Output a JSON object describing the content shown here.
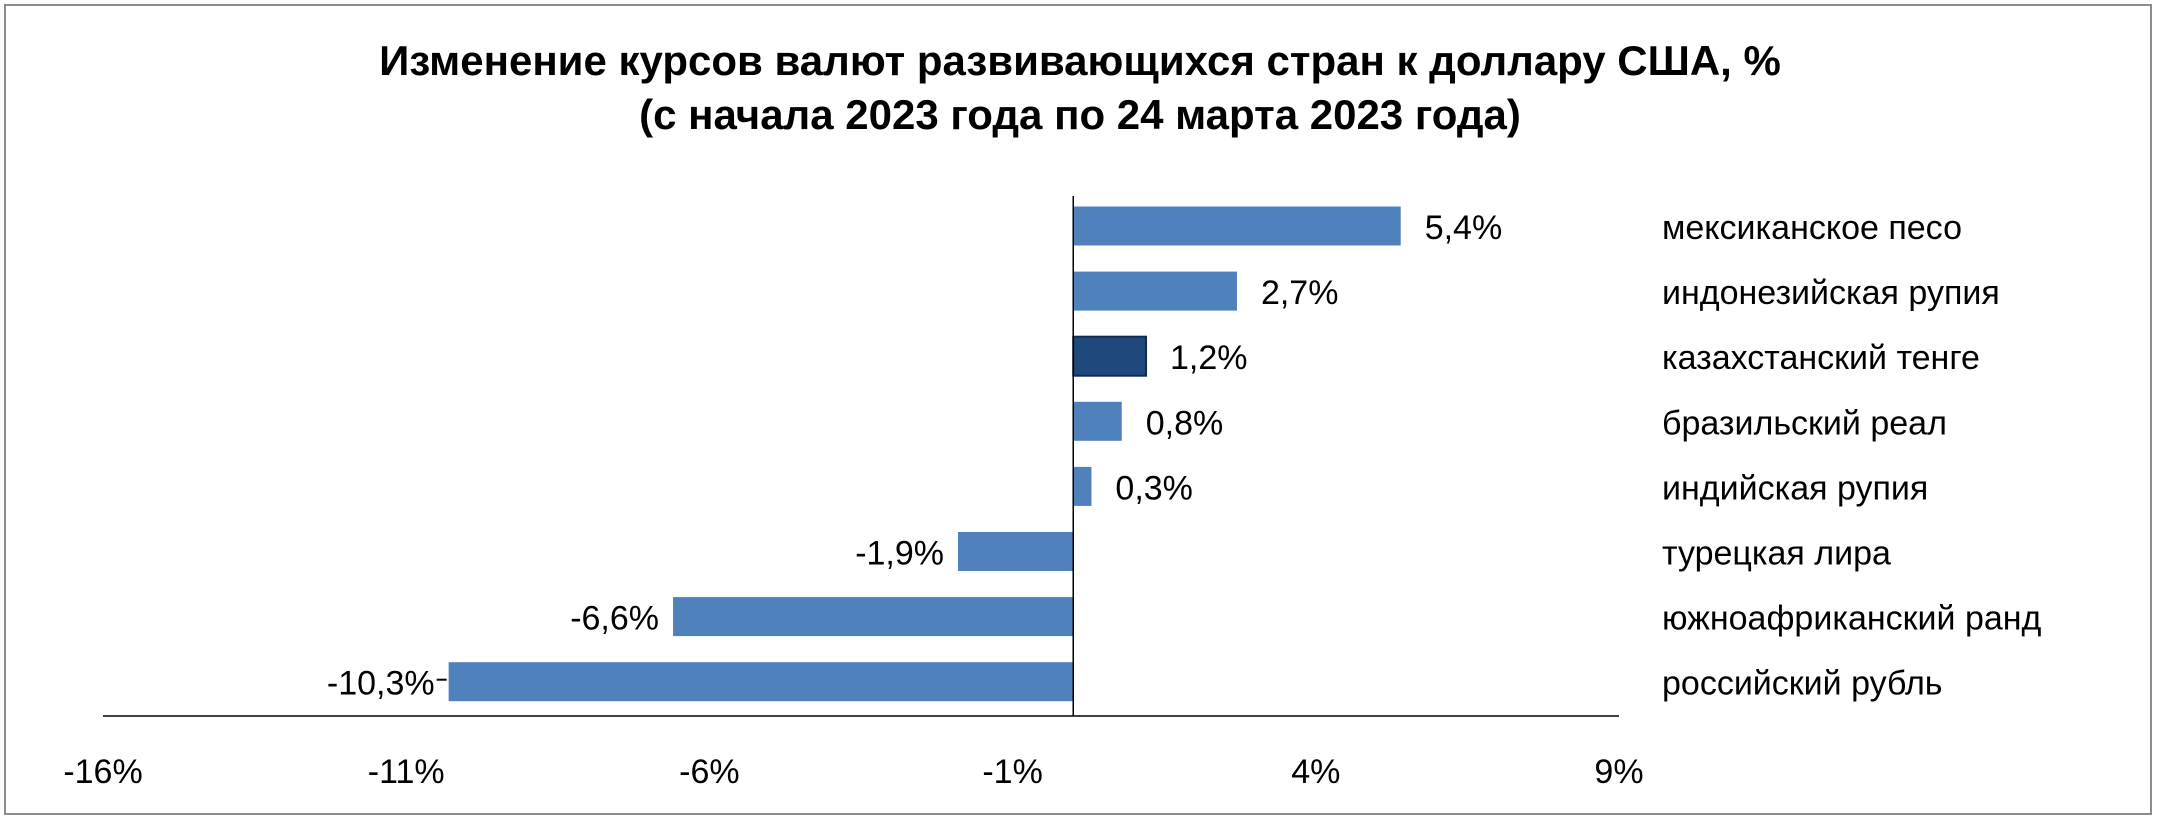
{
  "chart_data": {
    "type": "bar",
    "orientation": "horizontal",
    "title": "Изменение курсов валют развивающихся стран к доллару США, %",
    "subtitle": "(с начала 2023 года по 24 марта 2023 года)",
    "categories": [
      "мексиканское песо",
      "индонезийская рупия",
      "казахстанский тенге",
      "бразильский реал",
      "индийская рупия",
      "турецкая лира",
      "южноафриканский ранд",
      "российский рубль"
    ],
    "values": [
      5.4,
      2.7,
      1.2,
      0.8,
      0.3,
      -1.9,
      -6.6,
      -10.3
    ],
    "data_labels": [
      "5,4%",
      "2,7%",
      "1,2%",
      "0,8%",
      "0,3%",
      "-1,9%",
      "-6,6%",
      "-10,3%"
    ],
    "highlight": "казахстанский тенге",
    "x_ticks": [
      -16,
      -11,
      -6,
      -1,
      4,
      9
    ],
    "x_tick_labels": [
      "-16%",
      "-11%",
      "-6%",
      "-1%",
      "4%",
      "9%"
    ],
    "xlim": [
      -16,
      9
    ],
    "zero_line": 0,
    "grid": false,
    "legend": "none",
    "colors": {
      "bar": "#4f81bd",
      "highlight": "#1f497d",
      "axis": "#000000",
      "border": "#8c8c8c"
    }
  }
}
